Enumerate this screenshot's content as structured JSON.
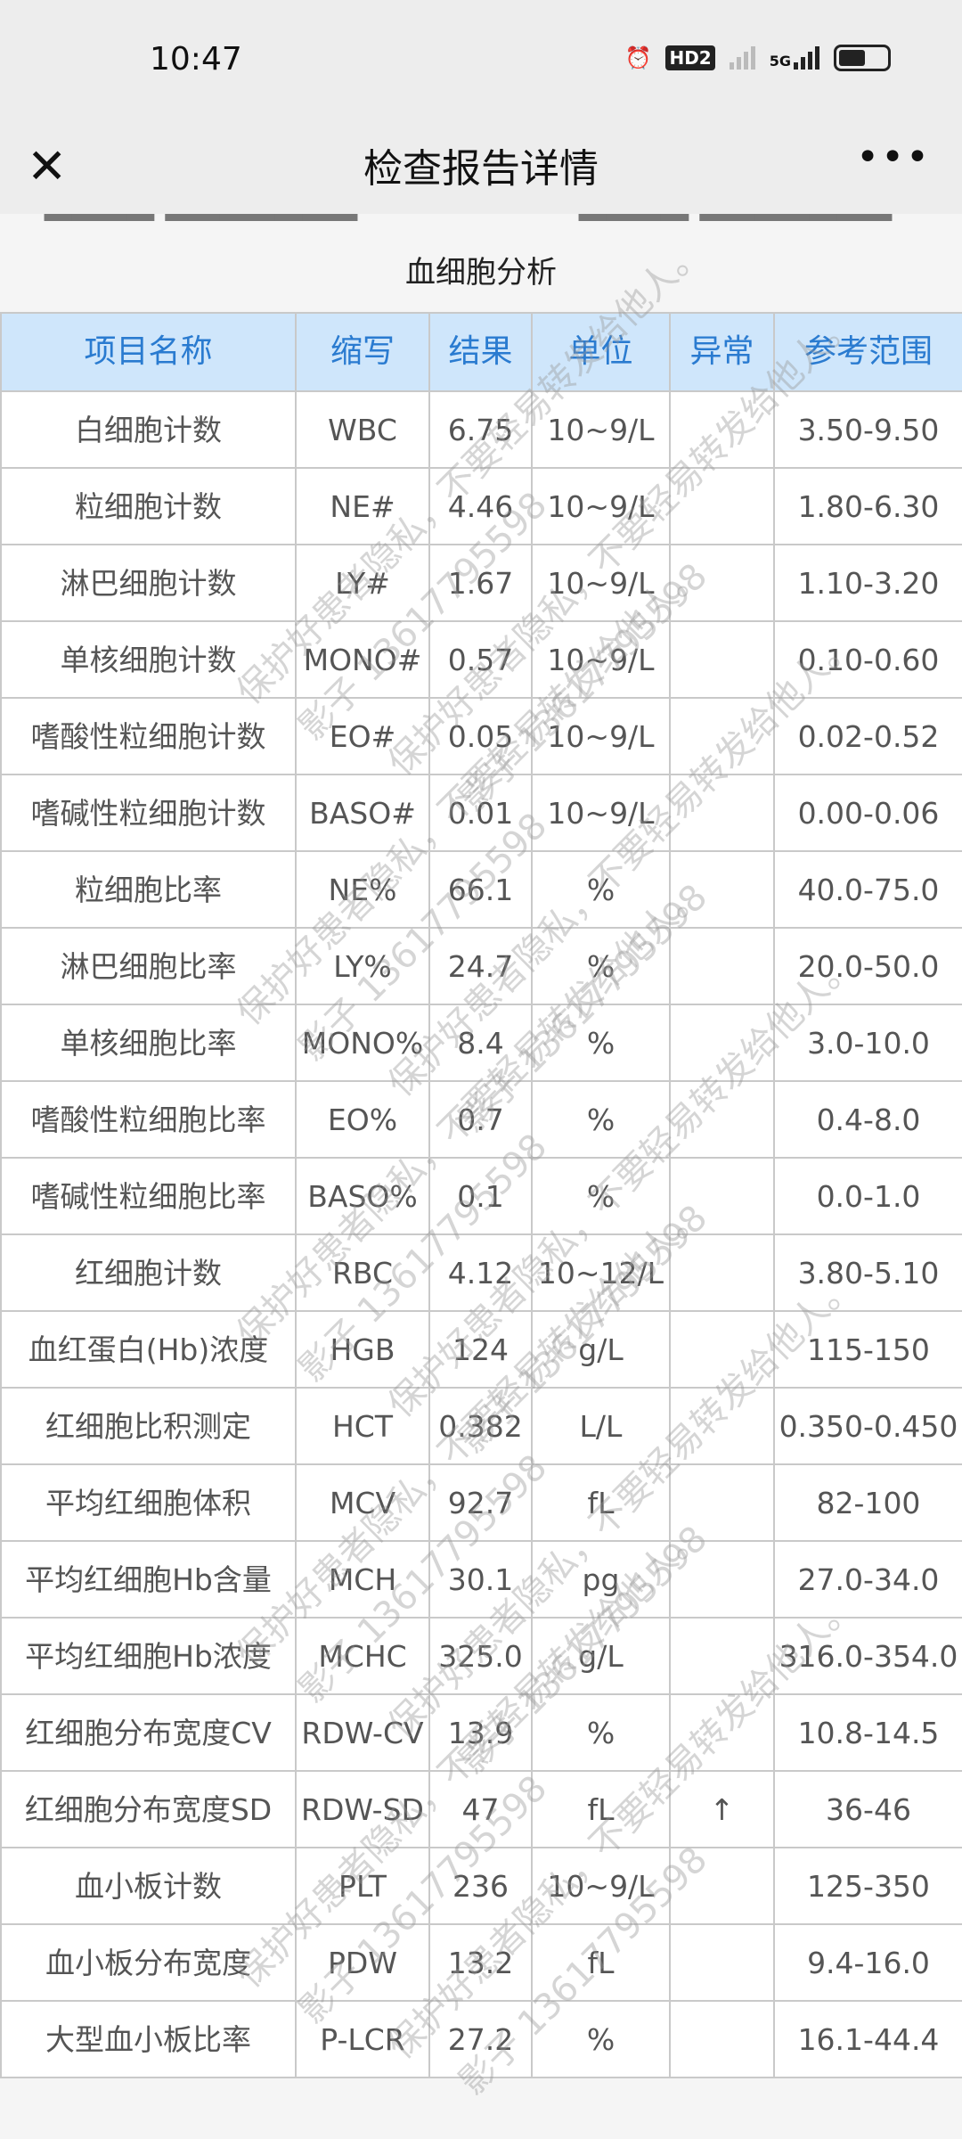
{
  "status": {
    "time": "10:47",
    "hd": "HD2",
    "network": "5G",
    "icons": [
      "alarm-icon",
      "hd-icon",
      "signal-icon",
      "5g-signal-icon",
      "battery-icon"
    ]
  },
  "nav": {
    "title": "检查报告详情",
    "close_icon": "close-icon",
    "more_icon": "more-icon"
  },
  "section_title": "血细胞分析",
  "columns": [
    "项目名称",
    "缩写",
    "结果",
    "单位",
    "异常",
    "参考范围"
  ],
  "rows": [
    [
      "白细胞计数",
      "WBC",
      "6.75",
      "10~9/L",
      "",
      "3.50-9.50"
    ],
    [
      "粒细胞计数",
      "NE#",
      "4.46",
      "10~9/L",
      "",
      "1.80-6.30"
    ],
    [
      "淋巴细胞计数",
      "LY#",
      "1.67",
      "10~9/L",
      "",
      "1.10-3.20"
    ],
    [
      "单核细胞计数",
      "MONO#",
      "0.57",
      "10~9/L",
      "",
      "0.10-0.60"
    ],
    [
      "嗜酸性粒细胞计数",
      "EO#",
      "0.05",
      "10~9/L",
      "",
      "0.02-0.52"
    ],
    [
      "嗜碱性粒细胞计数",
      "BASO#",
      "0.01",
      "10~9/L",
      "",
      "0.00-0.06"
    ],
    [
      "粒细胞比率",
      "NE%",
      "66.1",
      "%",
      "",
      "40.0-75.0"
    ],
    [
      "淋巴细胞比率",
      "LY%",
      "24.7",
      "%",
      "",
      "20.0-50.0"
    ],
    [
      "单核细胞比率",
      "MONO%",
      "8.4",
      "%",
      "",
      "3.0-10.0"
    ],
    [
      "嗜酸性粒细胞比率",
      "EO%",
      "0.7",
      "%",
      "",
      "0.4-8.0"
    ],
    [
      "嗜碱性粒细胞比率",
      "BASO%",
      "0.1",
      "%",
      "",
      "0.0-1.0"
    ],
    [
      "红细胞计数",
      "RBC",
      "4.12",
      "10~12/L",
      "",
      "3.80-5.10"
    ],
    [
      "血红蛋白(Hb)浓度",
      "HGB",
      "124",
      "g/L",
      "",
      "115-150"
    ],
    [
      "红细胞比积测定",
      "HCT",
      "0.382",
      "L/L",
      "",
      "0.350-0.450"
    ],
    [
      "平均红细胞体积",
      "MCV",
      "92.7",
      "fL",
      "",
      "82-100"
    ],
    [
      "平均红细胞Hb含量",
      "MCH",
      "30.1",
      "pg",
      "",
      "27.0-34.0"
    ],
    [
      "平均红细胞Hb浓度",
      "MCHC",
      "325.0",
      "g/L",
      "",
      "316.0-354.0"
    ],
    [
      "红细胞分布宽度CV",
      "RDW-CV",
      "13.9",
      "%",
      "",
      "10.8-14.5"
    ],
    [
      "红细胞分布宽度SD",
      "RDW-SD",
      "47",
      "fL",
      "↑",
      "36-46"
    ],
    [
      "血小板计数",
      "PLT",
      "236",
      "10~9/L",
      "",
      "125-350"
    ],
    [
      "血小板分布宽度",
      "PDW",
      "13.2",
      "fL",
      "",
      "9.4-16.0"
    ],
    [
      "大型血小板比率",
      "P-LCR",
      "27.2",
      "%",
      "",
      "16.1-44.4"
    ]
  ],
  "watermark": [
    "保护好患者隐私，不要轻易转发给他人。",
    "影子 13617795598"
  ]
}
